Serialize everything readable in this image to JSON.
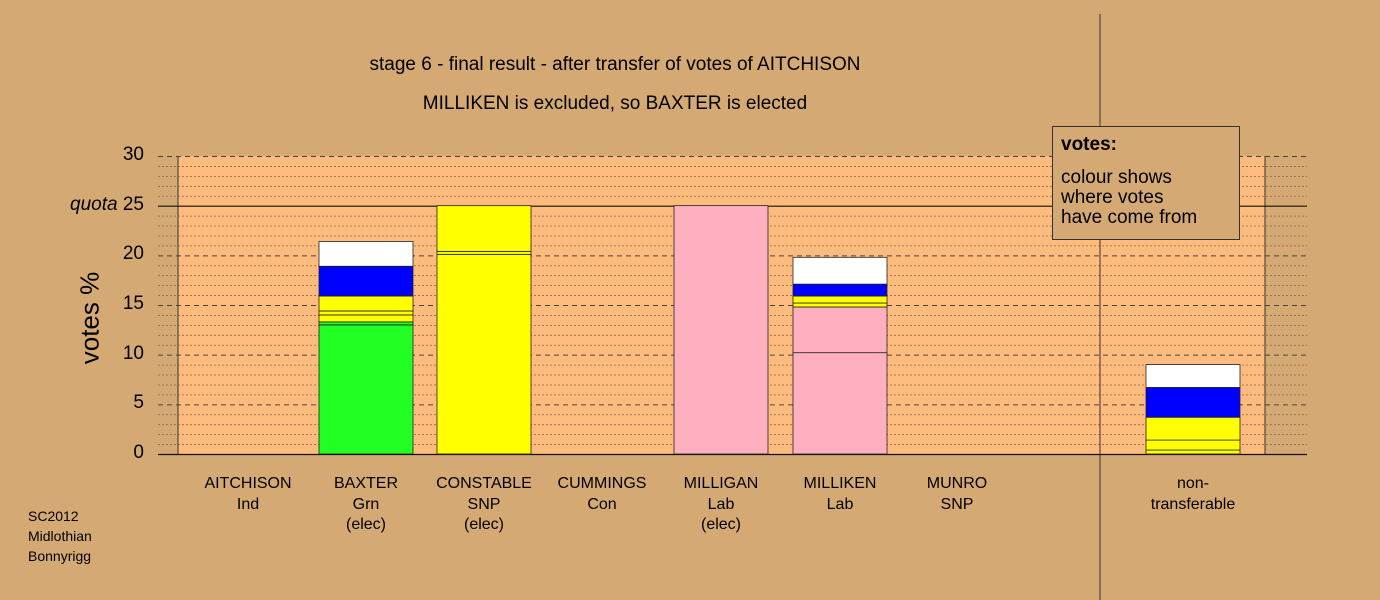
{
  "title_line1": "stage 6 - final result - after transfer of votes of AITCHISON",
  "title_line2": "MILLIKEN is excluded, so BAXTER is elected",
  "legend": {
    "heading": "votes:",
    "text": [
      "colour shows",
      "where votes",
      "have come from"
    ]
  },
  "source": [
    "SC2012",
    "Midlothian",
    "Bonnyrigg"
  ],
  "colors": {
    "background": "#d4a974",
    "plot_background": "#fdbc7e",
    "Grn": "#22ff22",
    "SNP": "#ffff00",
    "Lab": "#ffb0c0",
    "Con": "#0000ff",
    "Ind": "#ffffff"
  },
  "chart_data": {
    "type": "bar",
    "stacked": true,
    "ylabel": "votes %",
    "ylim": [
      0,
      30
    ],
    "yticks": [
      "0",
      "5",
      "10",
      "15",
      "20",
      "25",
      "30"
    ],
    "quota_label": "quota",
    "quota": 25,
    "grid": true,
    "categories": [
      {
        "name": "AITCHISON",
        "party": "Ind",
        "status": ""
      },
      {
        "name": "BAXTER",
        "party": "Grn",
        "status": "(elec)"
      },
      {
        "name": "CONSTABLE",
        "party": "SNP",
        "status": "(elec)"
      },
      {
        "name": "CUMMINGS",
        "party": "Con",
        "status": ""
      },
      {
        "name": "MILLIGAN",
        "party": "Lab",
        "status": "(elec)"
      },
      {
        "name": "MILLIKEN",
        "party": "Lab",
        "status": ""
      },
      {
        "name": "MUNRO",
        "party": "SNP",
        "status": ""
      },
      {
        "name": "non-",
        "party": "transferable",
        "status": ""
      }
    ],
    "stacks": [
      [],
      [
        {
          "source": "Grn",
          "value": 13.0
        },
        {
          "source": "Grn",
          "value": 0.3
        },
        {
          "source": "SNP",
          "value": 0.7
        },
        {
          "source": "SNP",
          "value": 0.4
        },
        {
          "source": "SNP",
          "value": 1.5
        },
        {
          "source": "Con",
          "value": 3.0
        },
        {
          "source": "Ind",
          "value": 2.5
        }
      ],
      [
        {
          "source": "SNP",
          "value": 20.1
        },
        {
          "source": "SNP",
          "value": 0.3
        },
        {
          "source": "SNP",
          "value": 4.6
        }
      ],
      [],
      [
        {
          "source": "Lab",
          "value": 25.0
        }
      ],
      [
        {
          "source": "Lab",
          "value": 10.2
        },
        {
          "source": "Lab",
          "value": 4.6
        },
        {
          "source": "SNP",
          "value": 0.4
        },
        {
          "source": "SNP",
          "value": 0.7
        },
        {
          "source": "Con",
          "value": 1.2
        },
        {
          "source": "Ind",
          "value": 2.7
        }
      ],
      [],
      [
        {
          "source": "SNP",
          "value": 0.4
        },
        {
          "source": "SNP",
          "value": 1.0
        },
        {
          "source": "SNP",
          "value": 2.3
        },
        {
          "source": "Con",
          "value": 3.0
        },
        {
          "source": "Ind",
          "value": 2.3
        }
      ]
    ]
  }
}
